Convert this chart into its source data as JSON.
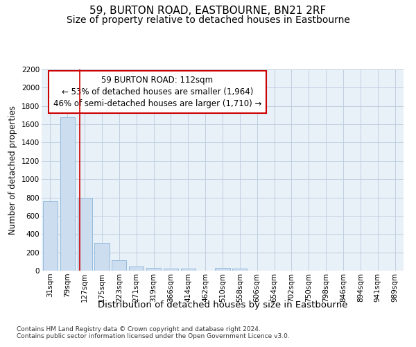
{
  "title": "59, BURTON ROAD, EASTBOURNE, BN21 2RF",
  "subtitle": "Size of property relative to detached houses in Eastbourne",
  "xlabel": "Distribution of detached houses by size in Eastbourne",
  "ylabel": "Number of detached properties",
  "categories": [
    "31sqm",
    "79sqm",
    "127sqm",
    "175sqm",
    "223sqm",
    "271sqm",
    "319sqm",
    "366sqm",
    "414sqm",
    "462sqm",
    "510sqm",
    "558sqm",
    "606sqm",
    "654sqm",
    "702sqm",
    "750sqm",
    "798sqm",
    "846sqm",
    "894sqm",
    "941sqm",
    "989sqm"
  ],
  "values": [
    760,
    1680,
    800,
    300,
    115,
    42,
    30,
    25,
    20,
    0,
    30,
    25,
    0,
    0,
    0,
    0,
    0,
    0,
    0,
    0,
    0
  ],
  "bar_color": "#ccddf0",
  "bar_edge_color": "#8ab4d8",
  "grid_color": "#c0d0e0",
  "bg_color": "#e8f0f8",
  "vline_x": 1.72,
  "vline_color": "#cc0000",
  "annotation_text": "59 BURTON ROAD: 112sqm\n← 53% of detached houses are smaller (1,964)\n46% of semi-detached houses are larger (1,710) →",
  "annotation_box_color": "#ffffff",
  "annotation_box_edge": "#cc0000",
  "ylim": [
    0,
    2200
  ],
  "yticks": [
    0,
    200,
    400,
    600,
    800,
    1000,
    1200,
    1400,
    1600,
    1800,
    2000,
    2200
  ],
  "footer": "Contains HM Land Registry data © Crown copyright and database right 2024.\nContains public sector information licensed under the Open Government Licence v3.0.",
  "title_fontsize": 11,
  "subtitle_fontsize": 10,
  "xlabel_fontsize": 9.5,
  "ylabel_fontsize": 8.5,
  "tick_fontsize": 7.5,
  "footer_fontsize": 6.5,
  "ann_fontsize": 8.5
}
